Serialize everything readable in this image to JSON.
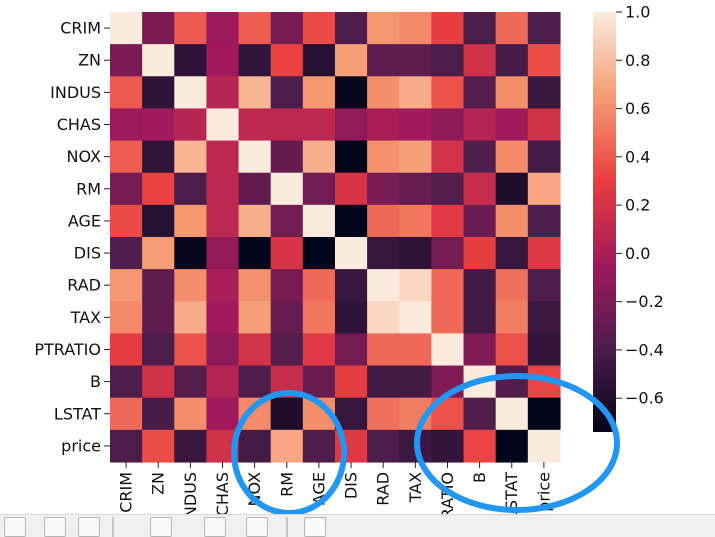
{
  "chart_data": {
    "type": "heatmap",
    "title": "",
    "variables": [
      "CRIM",
      "ZN",
      "INDUS",
      "CHAS",
      "NOX",
      "RM",
      "AGE",
      "DIS",
      "RAD",
      "TAX",
      "PTRATIO",
      "B",
      "LSTAT",
      "price"
    ],
    "matrix": [
      [
        1.0,
        -0.2,
        0.41,
        -0.06,
        0.42,
        -0.22,
        0.35,
        -0.38,
        0.63,
        0.58,
        0.29,
        -0.39,
        0.46,
        -0.39
      ],
      [
        -0.2,
        1.0,
        -0.53,
        -0.04,
        -0.52,
        0.31,
        -0.57,
        0.66,
        -0.31,
        -0.31,
        -0.39,
        0.18,
        -0.41,
        0.36
      ],
      [
        0.41,
        -0.53,
        1.0,
        0.06,
        0.76,
        -0.39,
        0.64,
        -0.71,
        0.6,
        0.72,
        0.38,
        -0.36,
        0.6,
        -0.48
      ],
      [
        -0.06,
        -0.04,
        0.06,
        1.0,
        0.09,
        0.09,
        0.09,
        -0.1,
        -0.01,
        -0.04,
        -0.12,
        0.05,
        -0.05,
        0.18
      ],
      [
        0.42,
        -0.52,
        0.76,
        0.09,
        1.0,
        -0.3,
        0.73,
        -0.77,
        0.61,
        0.67,
        0.19,
        -0.38,
        0.59,
        -0.43
      ],
      [
        -0.22,
        0.31,
        -0.39,
        0.09,
        -0.3,
        1.0,
        -0.24,
        0.21,
        -0.21,
        -0.29,
        -0.36,
        0.13,
        -0.61,
        0.7
      ],
      [
        0.35,
        -0.57,
        0.64,
        0.09,
        0.73,
        -0.24,
        1.0,
        -0.75,
        0.46,
        0.51,
        0.26,
        -0.27,
        0.6,
        -0.38
      ],
      [
        -0.38,
        0.66,
        -0.71,
        -0.1,
        -0.77,
        0.21,
        -0.75,
        1.0,
        -0.49,
        -0.53,
        -0.23,
        0.29,
        -0.5,
        0.25
      ],
      [
        0.63,
        -0.31,
        0.6,
        -0.01,
        0.61,
        -0.21,
        0.46,
        -0.49,
        1.0,
        0.91,
        0.46,
        -0.44,
        0.49,
        -0.38
      ],
      [
        0.58,
        -0.31,
        0.72,
        -0.04,
        0.67,
        -0.29,
        0.51,
        -0.53,
        0.91,
        1.0,
        0.46,
        -0.44,
        0.54,
        -0.47
      ],
      [
        0.29,
        -0.39,
        0.38,
        -0.12,
        0.19,
        -0.36,
        0.26,
        -0.23,
        0.46,
        0.46,
        1.0,
        -0.18,
        0.37,
        -0.51
      ],
      [
        -0.39,
        0.18,
        -0.36,
        0.05,
        -0.38,
        0.13,
        -0.27,
        0.29,
        -0.44,
        -0.44,
        -0.18,
        1.0,
        -0.37,
        0.33
      ],
      [
        0.46,
        -0.41,
        0.6,
        -0.05,
        0.59,
        -0.61,
        0.6,
        -0.5,
        0.49,
        0.54,
        0.37,
        -0.37,
        1.0,
        -0.74
      ],
      [
        -0.39,
        0.36,
        -0.48,
        0.18,
        -0.43,
        0.7,
        -0.38,
        0.25,
        -0.38,
        -0.47,
        -0.51,
        0.33,
        -0.74,
        1.0
      ]
    ],
    "colorbar": {
      "min": -0.74,
      "max": 1.0,
      "ticks": [
        "1.0",
        "0.8",
        "0.6",
        "0.4",
        "0.2",
        "0.0",
        "−0.2",
        "−0.4",
        "−0.6"
      ],
      "tick_values": [
        1.0,
        0.8,
        0.6,
        0.4,
        0.2,
        0.0,
        -0.2,
        -0.4,
        -0.6
      ]
    },
    "colormap": [
      "#03051a",
      "#4c1d4b",
      "#a11a5b",
      "#e83f3f",
      "#f69c73",
      "#faebdd"
    ],
    "grid": false,
    "xlabel": "",
    "ylabel": ""
  },
  "annotations": {
    "circle_color": "#2196f3"
  }
}
